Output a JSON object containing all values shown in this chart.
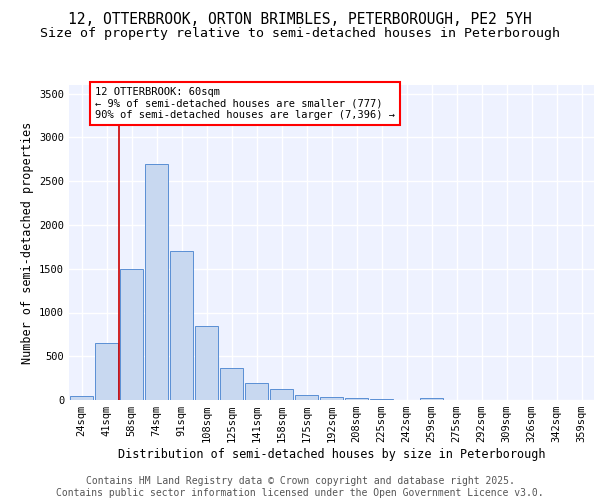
{
  "title_line1": "12, OTTERBROOK, ORTON BRIMBLES, PETERBOROUGH, PE2 5YH",
  "title_line2": "Size of property relative to semi-detached houses in Peterborough",
  "xlabel": "Distribution of semi-detached houses by size in Peterborough",
  "ylabel": "Number of semi-detached properties",
  "categories": [
    "24sqm",
    "41sqm",
    "58sqm",
    "74sqm",
    "91sqm",
    "108sqm",
    "125sqm",
    "141sqm",
    "158sqm",
    "175sqm",
    "192sqm",
    "208sqm",
    "225sqm",
    "242sqm",
    "259sqm",
    "275sqm",
    "292sqm",
    "309sqm",
    "326sqm",
    "342sqm",
    "359sqm"
  ],
  "values": [
    50,
    650,
    1500,
    2700,
    1700,
    850,
    370,
    190,
    130,
    55,
    35,
    25,
    10,
    0,
    25,
    0,
    0,
    0,
    0,
    0,
    0
  ],
  "bar_color": "#c8d8f0",
  "bar_edge_color": "#5a8fd4",
  "vline_color": "#cc0000",
  "annotation_text": "12 OTTERBROOK: 60sqm\n← 9% of semi-detached houses are smaller (777)\n90% of semi-detached houses are larger (7,396) →",
  "annotation_box_color": "white",
  "annotation_box_edge_color": "red",
  "ylim": [
    0,
    3600
  ],
  "background_color": "#eef2ff",
  "grid_color": "white",
  "footer_text": "Contains HM Land Registry data © Crown copyright and database right 2025.\nContains public sector information licensed under the Open Government Licence v3.0.",
  "title_fontsize": 10.5,
  "subtitle_fontsize": 9.5,
  "axis_label_fontsize": 8.5,
  "tick_fontsize": 7.5,
  "footer_fontsize": 7,
  "annotation_fontsize": 7.5
}
